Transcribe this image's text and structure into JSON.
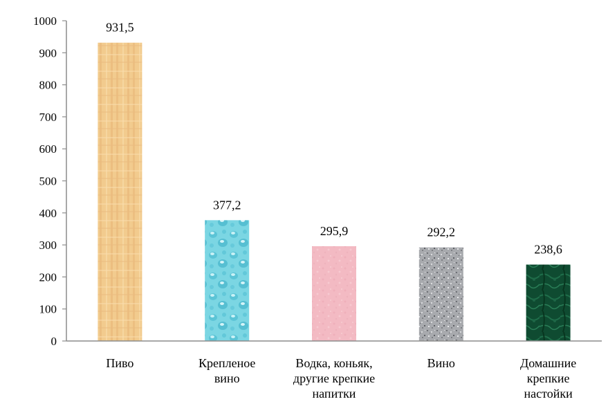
{
  "chart_data": {
    "type": "bar",
    "title": "",
    "xlabel": "",
    "ylabel": "",
    "ylim": [
      0,
      1000
    ],
    "yticks": [
      "0",
      "100",
      "200",
      "300",
      "400",
      "500",
      "600",
      "700",
      "800",
      "900",
      "1000"
    ],
    "grid": false,
    "legend": "none",
    "categories": [
      [
        "Пиво"
      ],
      [
        "Крепленое",
        "вино"
      ],
      [
        "Водка, коньяк,",
        "другие крепкие",
        "напитки"
      ],
      [
        "Вино"
      ],
      [
        "Домашние",
        "крепкие",
        "настойки"
      ]
    ],
    "values": [
      931.5,
      377.2,
      295.9,
      292.2,
      238.6
    ],
    "value_labels": [
      "931,5",
      "377,2",
      "295,9",
      "292,2",
      "238,6"
    ],
    "bar_textures": [
      "papyrus",
      "water-droplets",
      "pink-tissue",
      "granite",
      "green-marble"
    ],
    "colors": [
      "#F0C888",
      "#7FD8E4",
      "#F4BCC4",
      "#A9ABAF",
      "#0E4A30"
    ]
  }
}
